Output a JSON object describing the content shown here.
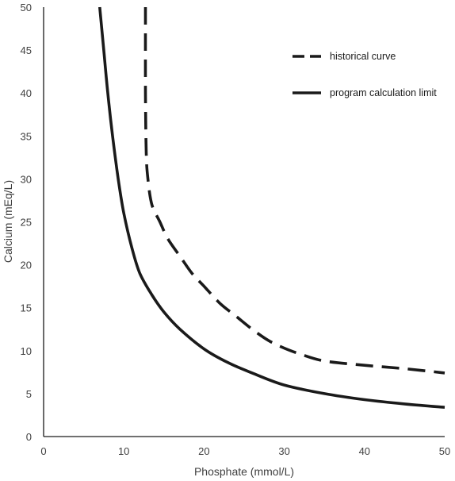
{
  "chart_data": {
    "type": "line",
    "title": "",
    "xlabel": "Phosphate (mmol/L)",
    "ylabel": "Calcium (mEq/L)",
    "xlim": [
      0,
      50
    ],
    "ylim": [
      0,
      50
    ],
    "x_ticks": [
      "0",
      "10",
      "20",
      "30",
      "40",
      "50"
    ],
    "y_ticks": [
      "0",
      "5",
      "10",
      "15",
      "20",
      "25",
      "30",
      "35",
      "40",
      "45",
      "50"
    ],
    "grid": false,
    "legend_position": "top-right",
    "series": [
      {
        "name": "historical curve",
        "style": "dashed",
        "color": "#1a1a1a",
        "points": [
          [
            12.7,
            50
          ],
          [
            12.7,
            40
          ],
          [
            12.8,
            33
          ],
          [
            13.0,
            30
          ],
          [
            13.5,
            27
          ],
          [
            14.5,
            25
          ],
          [
            15.5,
            23
          ],
          [
            17,
            21
          ],
          [
            18.5,
            19
          ],
          [
            20,
            17.5
          ],
          [
            22,
            15.5
          ],
          [
            24,
            14
          ],
          [
            26,
            12.5
          ],
          [
            28,
            11.2
          ],
          [
            30,
            10.3
          ],
          [
            32,
            9.6
          ],
          [
            35,
            8.8
          ],
          [
            40,
            8.3
          ],
          [
            45,
            7.9
          ],
          [
            50,
            7.4
          ]
        ]
      },
      {
        "name": "program calculation limit",
        "style": "solid",
        "color": "#1a1a1a",
        "points": [
          [
            7.0,
            50
          ],
          [
            7.5,
            45
          ],
          [
            8,
            40
          ],
          [
            8.6,
            35
          ],
          [
            9.3,
            30
          ],
          [
            10.0,
            26
          ],
          [
            11,
            22
          ],
          [
            12,
            19
          ],
          [
            13.5,
            16.5
          ],
          [
            15,
            14.5
          ],
          [
            17,
            12.5
          ],
          [
            20,
            10.2
          ],
          [
            23,
            8.6
          ],
          [
            26,
            7.4
          ],
          [
            30,
            6.0
          ],
          [
            35,
            5.0
          ],
          [
            40,
            4.3
          ],
          [
            45,
            3.8
          ],
          [
            50,
            3.4
          ]
        ]
      }
    ]
  }
}
